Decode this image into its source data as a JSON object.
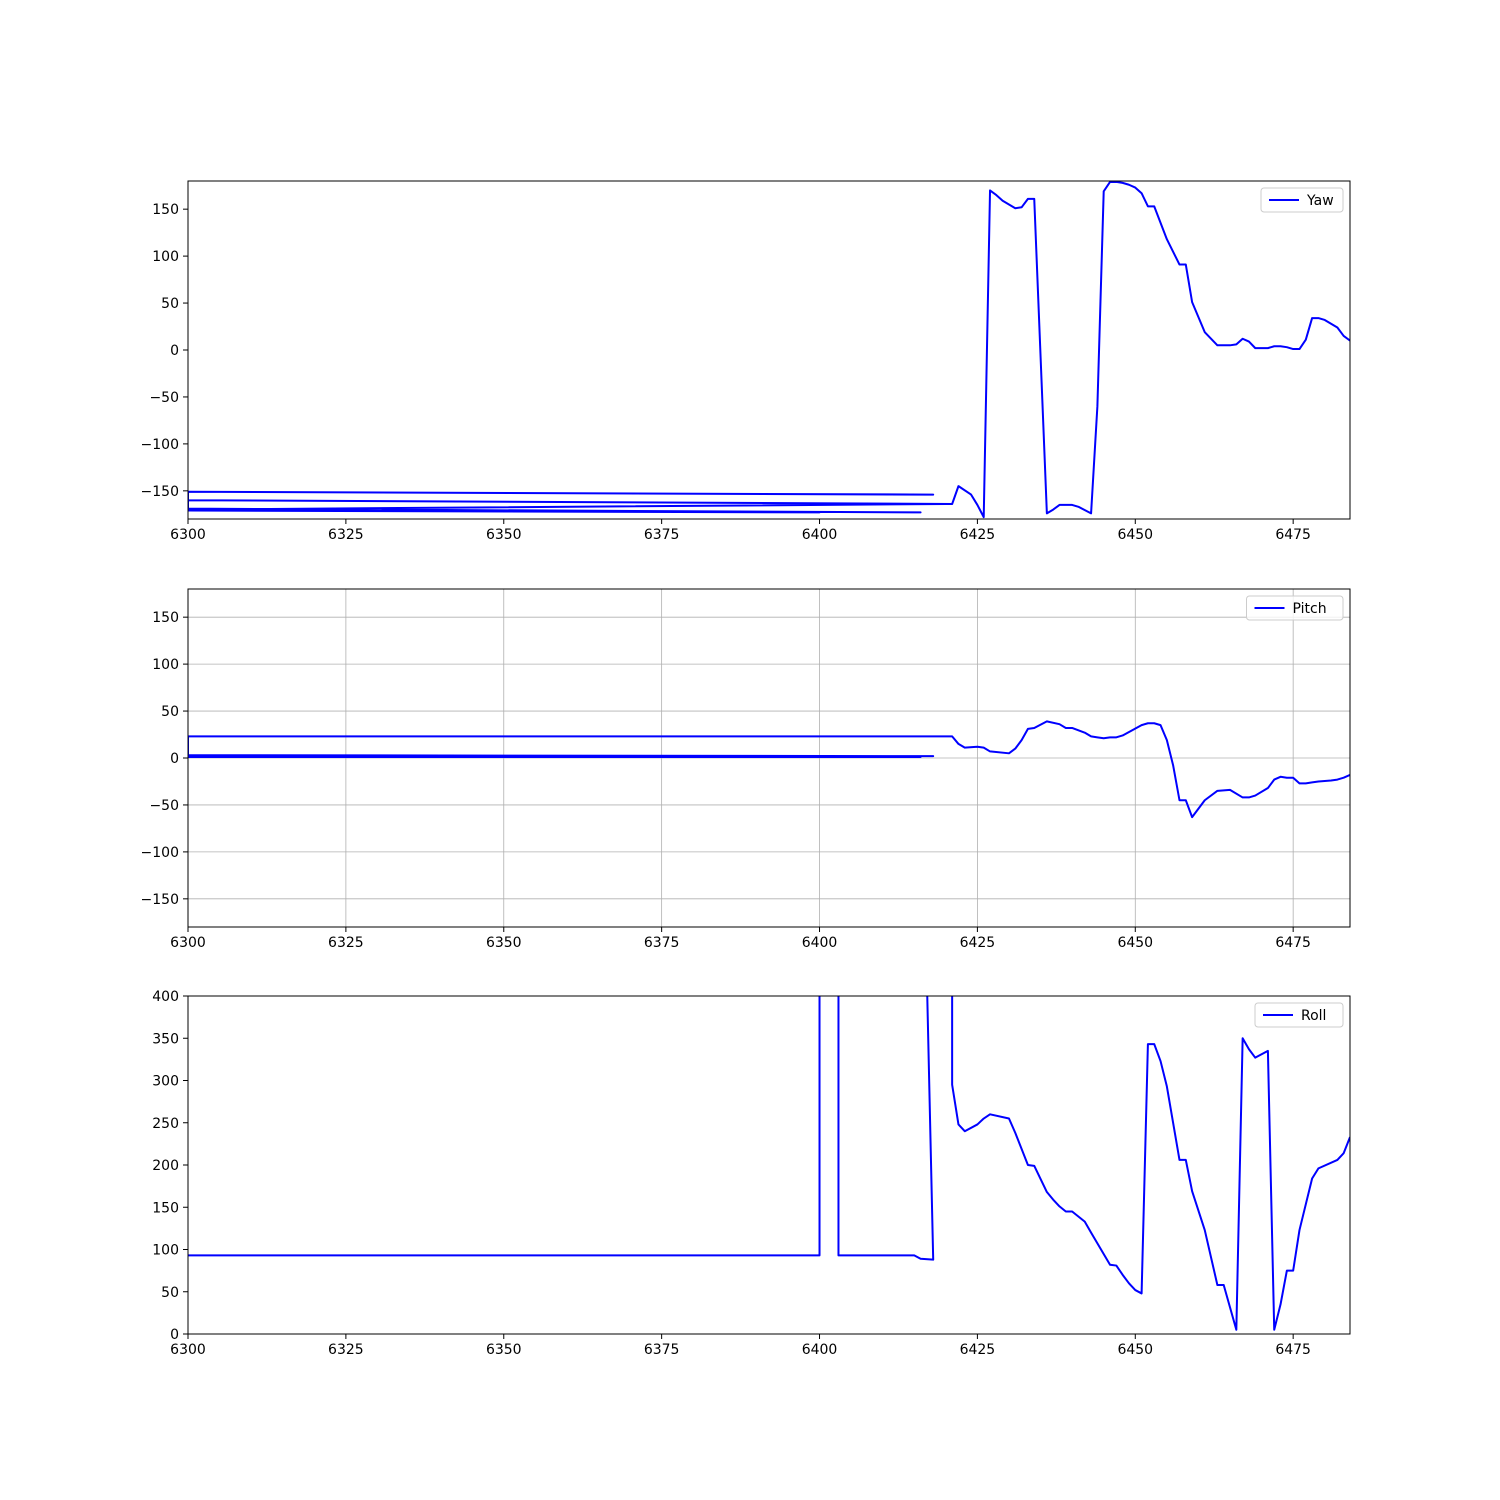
{
  "chart_data": [
    {
      "type": "line",
      "title": "",
      "xlabel": "",
      "ylabel": "",
      "xlim": [
        6300,
        6484
      ],
      "ylim": [
        -180,
        180
      ],
      "grid": false,
      "legend_position": "upper right",
      "x_ticks": [
        6300,
        6325,
        6350,
        6375,
        6400,
        6425,
        6450,
        6475
      ],
      "x_tick_labels": [
        "6300",
        "6325",
        "6350",
        "6375",
        "6400",
        "6425",
        "6450",
        "6475"
      ],
      "y_ticks": [
        150,
        100,
        50,
        0,
        -50,
        -100,
        -150
      ],
      "y_tick_labels": [
        "150",
        "100",
        "50",
        "0",
        "−50",
        "−100",
        "−150"
      ],
      "series": [
        {
          "name": "Yaw",
          "color": "#0000ff",
          "x": [
            6300,
            6418,
            6417,
            6300,
            6300,
            6421,
            6421,
            6300,
            6300,
            6416,
            6415,
            6300,
            6300,
            6400,
            6400,
            6300,
            6300,
            6420,
            6421,
            6422,
            6424,
            6425,
            6426,
            6427,
            6428,
            6429,
            6430,
            6431,
            6432,
            6433,
            6434,
            6436,
            6437,
            6438,
            6439,
            6440,
            6441,
            6443,
            6444,
            6445,
            6446,
            6447,
            6448,
            6449,
            6450,
            6451,
            6452,
            6453,
            6455,
            6457,
            6458,
            6459,
            6461,
            6463,
            6465,
            6466,
            6467,
            6468,
            6469,
            6471,
            6472,
            6473,
            6474,
            6475,
            6476,
            6477,
            6478,
            6479,
            6480,
            6482,
            6483,
            6484
          ],
          "y": [
            -151,
            -154,
            -154,
            -151,
            -160,
            -164,
            -164,
            -160,
            -169,
            -173,
            -173,
            -169,
            -171,
            -173,
            -173,
            -171,
            -170,
            -164,
            -164,
            -145,
            -154,
            -165,
            -178,
            170,
            165,
            159,
            155,
            151,
            152,
            161,
            161,
            -174,
            -170,
            -165,
            -165,
            -165,
            -167,
            -174,
            -60,
            169,
            179,
            179,
            178,
            176,
            173,
            167,
            153,
            153,
            118,
            91,
            91,
            51,
            19,
            5,
            5,
            6,
            12,
            9,
            2,
            2,
            4,
            4,
            3,
            1,
            1,
            11,
            34,
            34,
            32,
            24,
            15,
            10
          ]
        }
      ]
    },
    {
      "type": "line",
      "title": "",
      "xlabel": "",
      "ylabel": "",
      "xlim": [
        6300,
        6484
      ],
      "ylim": [
        -180,
        180
      ],
      "grid": true,
      "legend_position": "upper right",
      "x_ticks": [
        6300,
        6325,
        6350,
        6375,
        6400,
        6425,
        6450,
        6475
      ],
      "x_tick_labels": [
        "6300",
        "6325",
        "6350",
        "6375",
        "6400",
        "6425",
        "6450",
        "6475"
      ],
      "y_ticks": [
        150,
        100,
        50,
        0,
        -50,
        -100,
        -150
      ],
      "y_tick_labels": [
        "150",
        "100",
        "50",
        "0",
        "−50",
        "−100",
        "−150"
      ],
      "series": [
        {
          "name": "Pitch",
          "color": "#0000ff",
          "x": [
            6300,
            6418,
            6417,
            6300,
            6300,
            6416,
            6415,
            6300,
            6300,
            6418,
            6417,
            6300,
            6300,
            6421,
            6422,
            6423,
            6425,
            6426,
            6427,
            6430,
            6431,
            6432,
            6433,
            6434,
            6436,
            6438,
            6439,
            6440,
            6442,
            6443,
            6444,
            6445,
            6446,
            6447,
            6448,
            6451,
            6452,
            6453,
            6454,
            6455,
            6456,
            6457,
            6458,
            6459,
            6461,
            6463,
            6465,
            6467,
            6468,
            6469,
            6471,
            6472,
            6473,
            6474,
            6475,
            6476,
            6477,
            6478,
            6479,
            6481,
            6482,
            6483,
            6484
          ],
          "y": [
            3,
            2,
            2,
            3,
            1,
            1,
            1,
            1,
            2,
            2,
            2,
            2,
            23,
            23,
            15,
            11,
            12,
            11,
            7,
            5,
            10,
            19,
            31,
            32,
            39,
            36,
            32,
            32,
            27,
            23,
            22,
            21,
            22,
            22,
            24,
            35,
            37,
            37,
            35,
            19,
            -8,
            -45,
            -45,
            -63,
            -45,
            -35,
            -34,
            -42,
            -42,
            -40,
            -32,
            -23,
            -20,
            -21,
            -21,
            -27,
            -27,
            -26,
            -25,
            -24,
            -23,
            -21,
            -18
          ]
        }
      ]
    },
    {
      "type": "line",
      "title": "",
      "xlabel": "",
      "ylabel": "",
      "xlim": [
        6300,
        6484
      ],
      "ylim": [
        0,
        400
      ],
      "grid": false,
      "legend_position": "upper right",
      "x_ticks": [
        6300,
        6325,
        6350,
        6375,
        6400,
        6425,
        6450,
        6475
      ],
      "x_tick_labels": [
        "6300",
        "6325",
        "6350",
        "6375",
        "6400",
        "6425",
        "6450",
        "6475"
      ],
      "y_ticks": [
        400,
        350,
        300,
        250,
        200,
        150,
        100,
        50,
        0
      ],
      "y_tick_labels": [
        "400",
        "350",
        "300",
        "250",
        "200",
        "150",
        "100",
        "50",
        "0"
      ],
      "series": [
        {
          "name": "Roll",
          "color": "#0000ff",
          "x": [
            6300,
            6400,
            6400,
            6403,
            6403,
            6415,
            6416,
            6418,
            6417,
            6421,
            6421,
            6422,
            6423,
            6425,
            6426,
            6427,
            6430,
            6431,
            6433,
            6434,
            6436,
            6437,
            6438,
            6439,
            6440,
            6442,
            6443,
            6446,
            6447,
            6448,
            6449,
            6450,
            6451,
            6452,
            6453,
            6454,
            6455,
            6457,
            6458,
            6459,
            6461,
            6463,
            6464,
            6466,
            6467,
            6468,
            6469,
            6471,
            6472,
            6473,
            6474,
            6475,
            6476,
            6478,
            6479,
            6482,
            6483,
            6484
          ],
          "y": [
            93,
            93,
            420,
            420,
            93,
            93,
            89,
            88,
            420,
            420,
            295,
            248,
            240,
            248,
            255,
            260,
            255,
            238,
            200,
            199,
            168,
            159,
            151,
            145,
            145,
            133,
            120,
            82,
            81,
            70,
            60,
            52,
            48,
            343,
            343,
            323,
            293,
            206,
            206,
            169,
            123,
            58,
            58,
            5,
            350,
            337,
            327,
            335,
            5,
            35,
            75,
            75,
            123,
            184,
            196,
            206,
            214,
            233
          ]
        }
      ]
    }
  ]
}
